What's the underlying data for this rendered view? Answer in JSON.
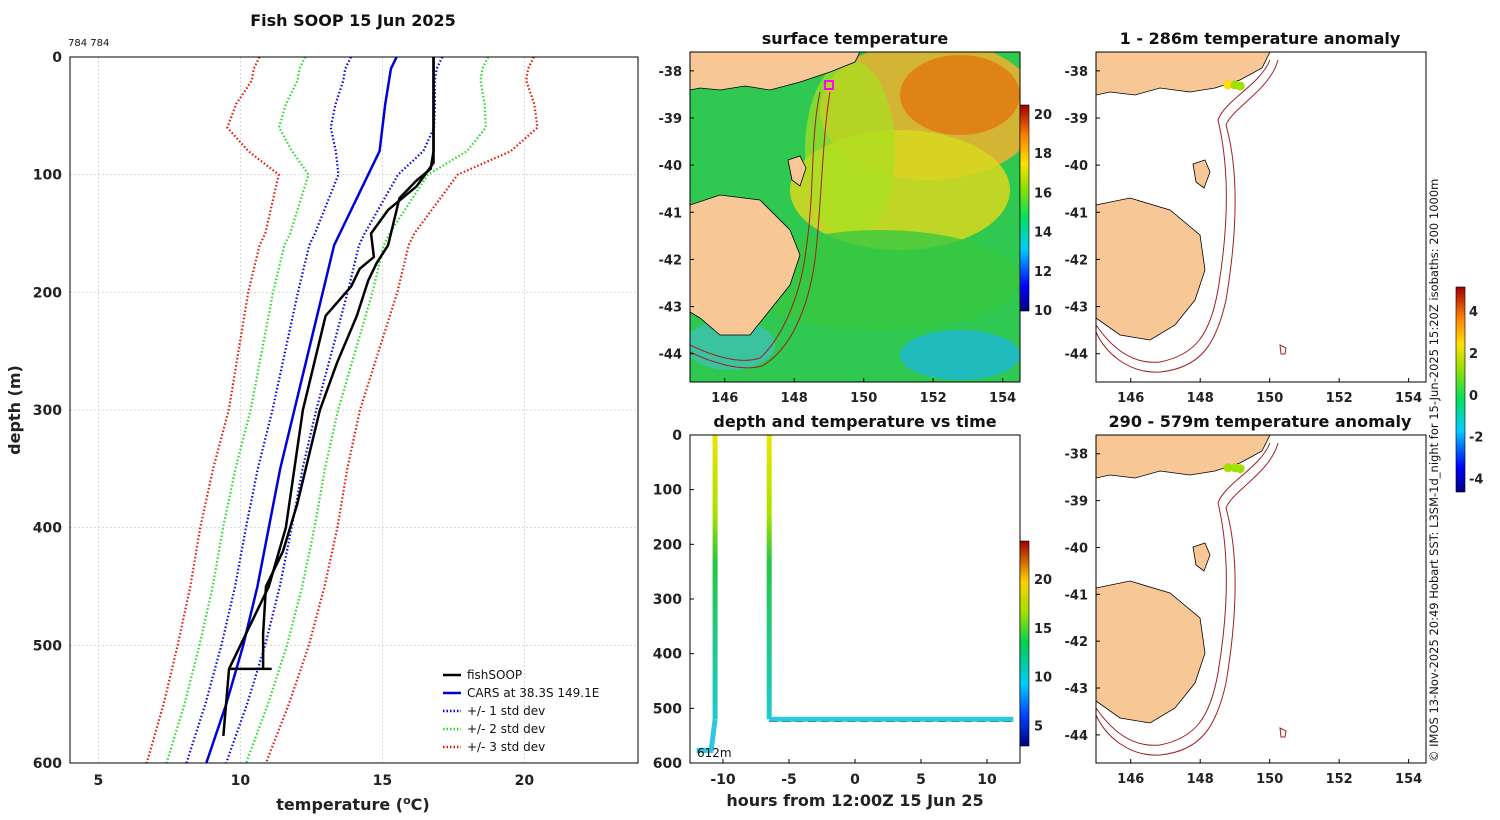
{
  "page_title": "Fish SOOP 15 Jun 2025",
  "profile_id": "784 784",
  "credit": "© IMOS 13-Nov-2025 20:49 Hobart SST: L3SM-1d_night for 15-Jun-2025 15:20Z isobaths: 200  1000m",
  "colors": {
    "fishsoop": "#000000",
    "cars": "#0000dd",
    "std1": "#0000ee",
    "std2": "#22dd22",
    "std3": "#ee1100",
    "land": "#f8c796",
    "isobath": "#a02020"
  },
  "chart_data": [
    {
      "id": "profile",
      "type": "line",
      "title": "Fish SOOP 15 Jun 2025",
      "xlabel_prefix": "temperature (",
      "xlabel_sup": "o",
      "xlabel_suffix": "C)",
      "ylabel": "depth (m)",
      "xlim": [
        4,
        24
      ],
      "ylim": [
        0,
        600
      ],
      "y_inverted": true,
      "xticks": [
        5,
        10,
        15,
        20
      ],
      "yticks": [
        0,
        100,
        200,
        300,
        400,
        500,
        600
      ],
      "legend": [
        {
          "label": "fishSOOP",
          "color": "#000000",
          "style": "solid"
        },
        {
          "label": "CARS at 38.3S 149.1E",
          "color": "#0000dd",
          "style": "solid"
        },
        {
          "label": "+/- 1 std dev",
          "color": "#0000ee",
          "style": "dotted"
        },
        {
          "label": "+/- 2 std dev",
          "color": "#22dd22",
          "style": "dotted"
        },
        {
          "label": "+/- 3 std dev",
          "color": "#ee1100",
          "style": "dotted"
        }
      ],
      "cars": {
        "depth": [
          0,
          10,
          40,
          80,
          120,
          160,
          200,
          250,
          300,
          350,
          400,
          450,
          500,
          550,
          600
        ],
        "temp": [
          15.5,
          15.3,
          15.1,
          14.9,
          14.1,
          13.3,
          12.9,
          12.4,
          11.9,
          11.4,
          11.0,
          10.6,
          10.1,
          9.5,
          8.8
        ]
      },
      "std_offsets": [
        1.0,
        2.0,
        3.0
      ],
      "std_scale": {
        "depth": [
          0,
          20,
          40,
          60,
          80,
          100,
          150,
          200,
          300,
          400,
          500,
          600
        ],
        "scale": [
          2.3,
          2.3,
          2.5,
          2.6,
          2.2,
          1.5,
          1.25,
          1.25,
          1.1,
          1.15,
          1.1,
          1.0
        ]
      },
      "fish_down": {
        "depth": [
          0,
          50,
          90,
          110,
          130,
          150,
          170,
          180,
          195,
          220,
          260,
          300,
          350,
          400,
          450,
          500,
          520,
          577
        ],
        "temp": [
          16.8,
          16.8,
          16.8,
          16.2,
          15.2,
          14.6,
          14.7,
          14.2,
          13.9,
          13.0,
          12.6,
          12.2,
          11.9,
          11.6,
          11.0,
          10.0,
          9.6,
          9.4
        ]
      },
      "fish_up": {
        "depth": [
          520,
          490,
          450,
          420,
          380,
          340,
          300,
          260,
          220,
          190,
          175,
          160,
          140,
          120,
          105,
          95,
          80,
          40,
          10,
          0
        ],
        "temp": [
          10.8,
          10.8,
          10.9,
          11.5,
          12.0,
          12.4,
          12.8,
          13.4,
          14.1,
          14.5,
          14.8,
          15.2,
          15.4,
          15.6,
          16.2,
          16.7,
          16.8,
          16.8,
          16.8,
          16.8
        ]
      },
      "bottom_marker": {
        "depth": 520,
        "temp_from": 9.6,
        "temp_to": 11.1
      }
    },
    {
      "id": "sst",
      "type": "heatmap",
      "title": "surface temperature",
      "xlim": [
        145,
        154.5
      ],
      "ylim": [
        -44.6,
        -37.6
      ],
      "xticks": [
        146,
        148,
        150,
        152,
        154
      ],
      "yticks": [
        -38,
        -39,
        -40,
        -41,
        -42,
        -43,
        -44
      ],
      "colorbar_range": [
        10,
        20.5
      ],
      "colorbar_ticks": [
        10,
        12,
        14,
        16,
        18,
        20
      ],
      "marker": {
        "lon": 149.0,
        "lat": -38.3
      }
    },
    {
      "id": "timeseries",
      "type": "line",
      "title": "depth and temperature vs time",
      "xlabel": "hours from 12:00Z 15 Jun 25",
      "xlim": [
        -12.5,
        12.5
      ],
      "ylim": [
        0,
        600
      ],
      "y_inverted": true,
      "xticks": [
        -10,
        -5,
        0,
        5,
        10
      ],
      "yticks": [
        0,
        100,
        200,
        300,
        400,
        500,
        600
      ],
      "colorbar_range": [
        3,
        24
      ],
      "colorbar_ticks": [
        5,
        10,
        15,
        20
      ],
      "bottom_label": "612m",
      "segments": [
        {
          "t": [
            -12.0,
            -10.9,
            -10.6,
            -10.6
          ],
          "d": [
            577,
            577,
            520,
            0
          ]
        },
        {
          "t": [
            -6.5,
            -6.5,
            -6.1,
            12.0
          ],
          "d": [
            0,
            520,
            520,
            520
          ]
        }
      ],
      "dashed_depth": 524
    },
    {
      "id": "anomaly_upper",
      "type": "scatter",
      "title": "1 - 286m temperature anomaly",
      "xlim": [
        145,
        154.5
      ],
      "ylim": [
        -44.6,
        -37.6
      ],
      "xticks": [
        146,
        148,
        150,
        152,
        154
      ],
      "yticks": [
        -38,
        -39,
        -40,
        -41,
        -42,
        -43,
        -44
      ],
      "points": [
        {
          "lon": 148.8,
          "lat": -38.3,
          "anomaly": 1.4
        },
        {
          "lon": 149.0,
          "lat": -38.3,
          "anomaly": 1.0
        },
        {
          "lon": 149.15,
          "lat": -38.32,
          "anomaly": 1.2
        }
      ]
    },
    {
      "id": "anomaly_lower",
      "type": "scatter",
      "title": "290 - 579m temperature anomaly",
      "xlim": [
        145,
        154.5
      ],
      "ylim": [
        -44.6,
        -37.6
      ],
      "xticks": [
        146,
        148,
        150,
        152,
        154
      ],
      "yticks": [
        -38,
        -39,
        -40,
        -41,
        -42,
        -43,
        -44
      ],
      "points": [
        {
          "lon": 148.8,
          "lat": -38.3,
          "anomaly": 0.6
        },
        {
          "lon": 149.0,
          "lat": -38.3,
          "anomaly": 0.3
        },
        {
          "lon": 149.15,
          "lat": -38.32,
          "anomaly": 0.5
        }
      ]
    },
    {
      "id": "anomaly_colorbar",
      "type": "heatmap",
      "colorbar_range": [
        -4.6,
        5.2
      ],
      "colorbar_ticks": [
        -4,
        -2,
        0,
        2,
        4
      ]
    }
  ]
}
